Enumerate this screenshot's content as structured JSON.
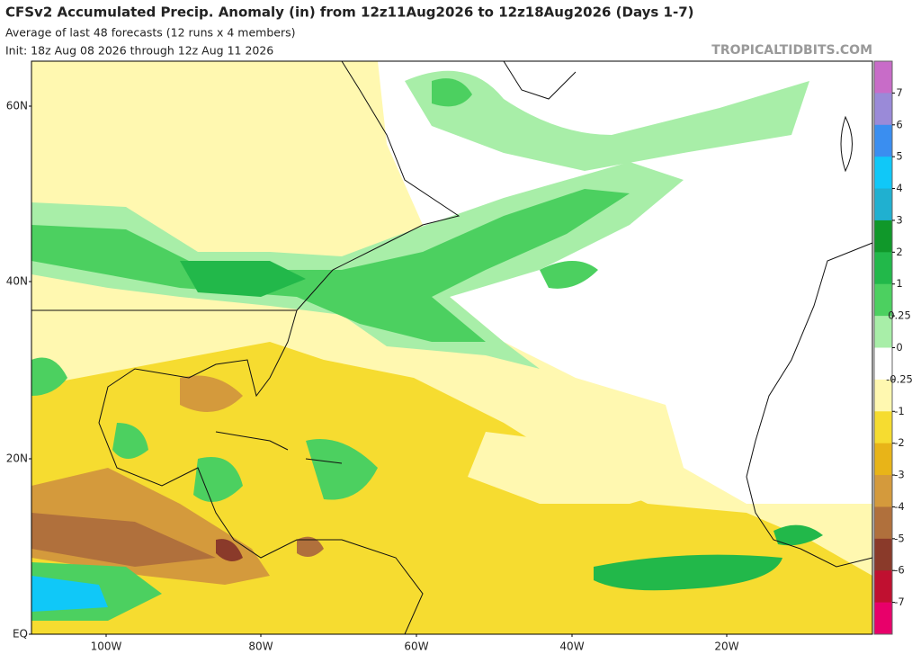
{
  "header": {
    "title": "CFSv2 Accumulated Precip. Anomaly (in) from 12z11Aug2026 to 12z18Aug2026 (Days 1-7)",
    "subtitle": "Average of last 48 forecasts (12 runs x 4 members)",
    "init": "Init: 18z Aug 08 2026 through 12z Aug 11 2026",
    "watermark": "TROPICALTIDBITS.COM"
  },
  "map": {
    "lat_labels": [
      "60N",
      "40N",
      "20N",
      "EQ"
    ],
    "lon_labels": [
      "100W",
      "80W",
      "60W",
      "40W",
      "20W"
    ]
  },
  "colorbar": {
    "labels": [
      "7",
      "6",
      "5",
      "4",
      "3",
      "2",
      "1",
      "0.25",
      "0",
      "-0.25",
      "-1",
      "-2",
      "-3",
      "-4",
      "-5",
      "-6",
      "-7"
    ],
    "colors": [
      "#c86cc8",
      "#9a8ad8",
      "#3a8ef0",
      "#10c8f8",
      "#20b0d0",
      "#10982a",
      "#22b84a",
      "#4cd060",
      "#a8eea8",
      "#ffffff",
      "#fff8b0",
      "#f6dc30",
      "#e8b418",
      "#d49a3c",
      "#b0703c",
      "#8a3a2a",
      "#c01030",
      "#e8006a"
    ]
  }
}
